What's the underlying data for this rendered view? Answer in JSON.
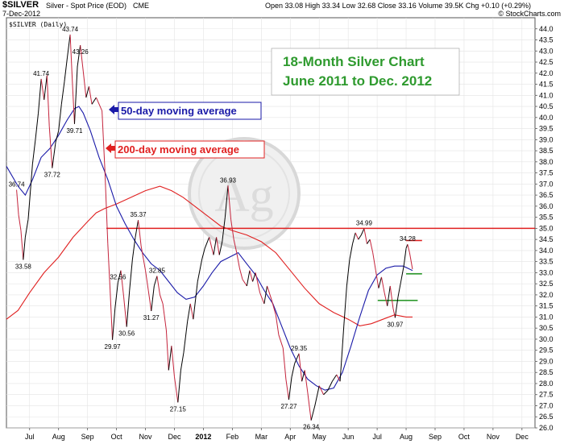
{
  "header": {
    "symbol": "$SILVER",
    "description": "Silver - Spot Price (EOD)",
    "exchange": "CME",
    "date": "7-Dec-2012",
    "open_label": "Open",
    "open": "33.08",
    "high_label": "High",
    "high": "33.34",
    "low_label": "Low",
    "low": "32.68",
    "close_label": "Close",
    "close": "33.16",
    "volume_label": "Volume",
    "volume": "39.5K",
    "chg_label": "Chg",
    "chg": "+0.10 (+0.29%)",
    "source": "© StockCharts.com",
    "legend_label": "$SILVER (Daily)"
  },
  "chart_data": {
    "type": "line",
    "title": "18-Month Silver Chart",
    "subtitle": "June 2011 to Dec. 2012",
    "ylim": [
      26,
      44.5
    ],
    "y_ticks": [
      26.0,
      26.5,
      27.0,
      27.5,
      28.0,
      28.5,
      29.0,
      29.5,
      30.0,
      30.5,
      31.0,
      31.5,
      32.0,
      32.5,
      33.0,
      33.5,
      34.0,
      34.5,
      35.0,
      35.5,
      36.0,
      36.5,
      37.0,
      37.5,
      38.0,
      38.5,
      39.0,
      39.5,
      40.0,
      40.5,
      41.0,
      41.5,
      42.0,
      42.5,
      43.0,
      43.5,
      44.0
    ],
    "x_ticks": [
      "Jul",
      "Aug",
      "Sep",
      "Oct",
      "Nov",
      "Dec",
      "2012",
      "Feb",
      "Mar",
      "Apr",
      "May",
      "Jun",
      "Jul",
      "Aug",
      "Sep",
      "Oct",
      "Nov",
      "Dec"
    ],
    "x_tick_months": [
      1,
      2,
      3,
      4,
      5,
      6,
      7,
      8,
      9,
      10,
      11,
      12,
      13,
      14,
      15,
      16,
      17,
      18
    ],
    "x_range": [
      0.2,
      18.45
    ],
    "colors": {
      "price": "#000000",
      "price_decline": "#c4243c",
      "ma50": "#1a1aa8",
      "ma200": "#e02020",
      "green": "#2e9a2e",
      "accent_text": "#2e9a2e"
    },
    "series": [
      {
        "name": "$SILVER (Daily)",
        "points": [
          [
            0.55,
            36.74
          ],
          [
            0.62,
            35.6
          ],
          [
            0.7,
            34.9
          ],
          [
            0.78,
            33.58
          ],
          [
            0.85,
            34.6
          ],
          [
            0.95,
            35.4
          ],
          [
            1.1,
            37.9
          ],
          [
            1.2,
            39.0
          ],
          [
            1.3,
            40.2
          ],
          [
            1.4,
            41.74
          ],
          [
            1.5,
            40.8
          ],
          [
            1.6,
            41.9
          ],
          [
            1.68,
            39.6
          ],
          [
            1.78,
            37.72
          ],
          [
            1.9,
            38.9
          ],
          [
            2.0,
            39.4
          ],
          [
            2.1,
            40.6
          ],
          [
            2.2,
            41.6
          ],
          [
            2.3,
            42.7
          ],
          [
            2.4,
            43.74
          ],
          [
            2.48,
            41.5
          ],
          [
            2.55,
            39.71
          ],
          [
            2.65,
            42.3
          ],
          [
            2.75,
            43.26
          ],
          [
            2.85,
            42.1
          ],
          [
            2.95,
            40.9
          ],
          [
            3.05,
            41.4
          ],
          [
            3.15,
            40.6
          ],
          [
            3.3,
            40.9
          ],
          [
            3.5,
            40.3
          ],
          [
            3.6,
            37.6
          ],
          [
            3.7,
            34.3
          ],
          [
            3.78,
            32.2
          ],
          [
            3.86,
            29.97
          ],
          [
            3.95,
            31.4
          ],
          [
            4.05,
            32.56
          ],
          [
            4.15,
            33.1
          ],
          [
            4.25,
            31.9
          ],
          [
            4.35,
            30.56
          ],
          [
            4.45,
            32.2
          ],
          [
            4.55,
            33.6
          ],
          [
            4.65,
            34.6
          ],
          [
            4.75,
            35.37
          ],
          [
            4.85,
            34.2
          ],
          [
            5.0,
            33.1
          ],
          [
            5.1,
            32.2
          ],
          [
            5.2,
            31.27
          ],
          [
            5.3,
            32.4
          ],
          [
            5.4,
            32.85
          ],
          [
            5.5,
            32.0
          ],
          [
            5.6,
            31.6
          ],
          [
            5.72,
            30.4
          ],
          [
            5.8,
            28.6
          ],
          [
            5.9,
            29.7
          ],
          [
            6.0,
            28.3
          ],
          [
            6.12,
            27.15
          ],
          [
            6.22,
            28.6
          ],
          [
            6.32,
            29.4
          ],
          [
            6.45,
            30.8
          ],
          [
            6.55,
            31.6
          ],
          [
            6.65,
            30.9
          ],
          [
            6.8,
            32.6
          ],
          [
            6.95,
            33.6
          ],
          [
            7.05,
            34.1
          ],
          [
            7.2,
            34.6
          ],
          [
            7.35,
            33.8
          ],
          [
            7.45,
            34.6
          ],
          [
            7.55,
            33.8
          ],
          [
            7.65,
            34.4
          ],
          [
            7.75,
            35.5
          ],
          [
            7.85,
            36.93
          ],
          [
            7.95,
            35.4
          ],
          [
            8.05,
            34.5
          ],
          [
            8.15,
            33.9
          ],
          [
            8.25,
            33.2
          ],
          [
            8.35,
            32.7
          ],
          [
            8.5,
            32.4
          ],
          [
            8.6,
            33.1
          ],
          [
            8.7,
            32.6
          ],
          [
            8.8,
            33.0
          ],
          [
            8.95,
            32.1
          ],
          [
            9.1,
            31.6
          ],
          [
            9.2,
            32.4
          ],
          [
            9.35,
            31.8
          ],
          [
            9.5,
            31.1
          ],
          [
            9.6,
            30.2
          ],
          [
            9.75,
            29.6
          ],
          [
            9.85,
            28.2
          ],
          [
            9.95,
            27.27
          ],
          [
            10.05,
            28.3
          ],
          [
            10.15,
            28.9
          ],
          [
            10.3,
            29.35
          ],
          [
            10.4,
            28.1
          ],
          [
            10.5,
            28.6
          ],
          [
            10.6,
            27.6
          ],
          [
            10.72,
            26.34
          ],
          [
            10.85,
            27.0
          ],
          [
            11.0,
            27.9
          ],
          [
            11.15,
            27.5
          ],
          [
            11.3,
            27.7
          ],
          [
            11.45,
            28.1
          ],
          [
            11.6,
            28.4
          ],
          [
            11.72,
            28.1
          ],
          [
            11.85,
            30.6
          ],
          [
            11.95,
            32.4
          ],
          [
            12.05,
            33.6
          ],
          [
            12.15,
            34.3
          ],
          [
            12.25,
            34.8
          ],
          [
            12.35,
            34.5
          ],
          [
            12.45,
            34.7
          ],
          [
            12.55,
            34.99
          ],
          [
            12.65,
            34.3
          ],
          [
            12.75,
            34.5
          ],
          [
            12.85,
            33.9
          ],
          [
            12.95,
            33.1
          ],
          [
            13.05,
            32.3
          ],
          [
            13.15,
            32.8
          ],
          [
            13.25,
            32.1
          ],
          [
            13.35,
            31.5
          ],
          [
            13.45,
            32.4
          ],
          [
            13.55,
            31.4
          ],
          [
            13.62,
            30.97
          ],
          [
            13.72,
            31.9
          ],
          [
            13.82,
            32.6
          ],
          [
            13.92,
            33.3
          ],
          [
            14.0,
            34.1
          ],
          [
            14.05,
            34.28
          ],
          [
            14.12,
            33.9
          ],
          [
            14.22,
            33.16
          ]
        ]
      },
      {
        "name": "50-day moving average",
        "points": [
          [
            0.2,
            37.8
          ],
          [
            0.6,
            36.9
          ],
          [
            0.85,
            36.5
          ],
          [
            1.1,
            37.2
          ],
          [
            1.4,
            38.2
          ],
          [
            1.7,
            38.6
          ],
          [
            2.0,
            39.2
          ],
          [
            2.3,
            39.9
          ],
          [
            2.55,
            40.4
          ],
          [
            2.7,
            40.5
          ],
          [
            2.85,
            40.2
          ],
          [
            3.1,
            39.4
          ],
          [
            3.4,
            38.2
          ],
          [
            3.7,
            37.2
          ],
          [
            4.0,
            36.0
          ],
          [
            4.3,
            35.2
          ],
          [
            4.6,
            34.5
          ],
          [
            4.9,
            33.9
          ],
          [
            5.2,
            33.4
          ],
          [
            5.5,
            33.1
          ],
          [
            5.8,
            32.6
          ],
          [
            6.1,
            32.1
          ],
          [
            6.4,
            31.8
          ],
          [
            6.7,
            31.9
          ],
          [
            7.0,
            32.4
          ],
          [
            7.3,
            33.0
          ],
          [
            7.6,
            33.5
          ],
          [
            7.9,
            33.7
          ],
          [
            8.2,
            33.9
          ],
          [
            8.5,
            33.4
          ],
          [
            8.8,
            32.9
          ],
          [
            9.1,
            32.2
          ],
          [
            9.4,
            31.6
          ],
          [
            9.7,
            30.6
          ],
          [
            10.0,
            29.6
          ],
          [
            10.3,
            28.8
          ],
          [
            10.6,
            28.2
          ],
          [
            10.9,
            27.9
          ],
          [
            11.2,
            27.7
          ],
          [
            11.5,
            27.8
          ],
          [
            11.8,
            28.5
          ],
          [
            12.1,
            29.7
          ],
          [
            12.4,
            31.0
          ],
          [
            12.7,
            32.2
          ],
          [
            13.0,
            32.9
          ],
          [
            13.3,
            33.2
          ],
          [
            13.6,
            33.3
          ],
          [
            13.9,
            33.3
          ],
          [
            14.22,
            33.1
          ]
        ]
      },
      {
        "name": "200-day moving average",
        "points": [
          [
            0.2,
            30.9
          ],
          [
            0.6,
            31.3
          ],
          [
            1.0,
            32.1
          ],
          [
            1.5,
            33.0
          ],
          [
            2.0,
            33.7
          ],
          [
            2.5,
            34.6
          ],
          [
            3.0,
            35.3
          ],
          [
            3.3,
            35.7
          ],
          [
            3.6,
            35.9
          ],
          [
            4.0,
            36.1
          ],
          [
            4.5,
            36.4
          ],
          [
            5.0,
            36.7
          ],
          [
            5.5,
            36.9
          ],
          [
            5.9,
            36.7
          ],
          [
            6.3,
            36.4
          ],
          [
            6.8,
            35.9
          ],
          [
            7.2,
            35.5
          ],
          [
            7.6,
            35.1
          ],
          [
            8.0,
            34.9
          ],
          [
            8.5,
            34.7
          ],
          [
            9.0,
            34.4
          ],
          [
            9.5,
            33.9
          ],
          [
            10.0,
            33.1
          ],
          [
            10.5,
            32.3
          ],
          [
            11.0,
            31.6
          ],
          [
            11.5,
            31.2
          ],
          [
            12.0,
            30.9
          ],
          [
            12.4,
            30.6
          ],
          [
            12.8,
            30.7
          ],
          [
            13.2,
            30.9
          ],
          [
            13.6,
            31.1
          ],
          [
            14.0,
            31.0
          ],
          [
            14.22,
            31.0
          ]
        ]
      }
    ],
    "labels": [
      {
        "text": "36.74",
        "x": 0.55,
        "y": 36.74,
        "pos": "above"
      },
      {
        "text": "33.58",
        "x": 0.78,
        "y": 33.58,
        "pos": "below"
      },
      {
        "text": "41.74",
        "x": 1.4,
        "y": 41.74,
        "pos": "above"
      },
      {
        "text": "37.72",
        "x": 1.78,
        "y": 37.72,
        "pos": "below"
      },
      {
        "text": "43.74",
        "x": 2.4,
        "y": 43.74,
        "pos": "above"
      },
      {
        "text": "39.71",
        "x": 2.55,
        "y": 39.71,
        "pos": "below"
      },
      {
        "text": "43.26",
        "x": 2.75,
        "y": 43.26,
        "pos": "below"
      },
      {
        "text": "29.97",
        "x": 3.86,
        "y": 29.97,
        "pos": "below"
      },
      {
        "text": "32.56",
        "x": 4.05,
        "y": 32.56,
        "pos": "above"
      },
      {
        "text": "30.56",
        "x": 4.35,
        "y": 30.56,
        "pos": "below"
      },
      {
        "text": "35.37",
        "x": 4.75,
        "y": 35.37,
        "pos": "above"
      },
      {
        "text": "31.27",
        "x": 5.2,
        "y": 31.27,
        "pos": "below"
      },
      {
        "text": "32.85",
        "x": 5.4,
        "y": 32.85,
        "pos": "above"
      },
      {
        "text": "27.15",
        "x": 6.12,
        "y": 27.15,
        "pos": "below"
      },
      {
        "text": "36.93",
        "x": 7.85,
        "y": 36.93,
        "pos": "above"
      },
      {
        "text": "27.27",
        "x": 9.95,
        "y": 27.27,
        "pos": "below"
      },
      {
        "text": "29.35",
        "x": 10.3,
        "y": 29.35,
        "pos": "above"
      },
      {
        "text": "26.34",
        "x": 10.72,
        "y": 26.34,
        "pos": "below"
      },
      {
        "text": "34.99",
        "x": 12.55,
        "y": 34.99,
        "pos": "above"
      },
      {
        "text": "30.97",
        "x": 13.62,
        "y": 30.97,
        "pos": "below"
      },
      {
        "text": "34.28",
        "x": 14.05,
        "y": 34.28,
        "pos": "above"
      }
    ],
    "reference_lines": [
      {
        "y": 35.0,
        "x0": 3.65,
        "x1": 18.45,
        "color": "red"
      },
      {
        "y": 34.45,
        "x0": 14.0,
        "x1": 14.55,
        "color": "red"
      },
      {
        "y": 32.95,
        "x0": 14.0,
        "x1": 14.55,
        "color": "green"
      },
      {
        "y": 31.75,
        "x0": 13.02,
        "x1": 14.4,
        "color": "green"
      }
    ],
    "annotations": [
      {
        "text": "50-day moving average",
        "color": "#1a1aa8",
        "arrow": "left"
      },
      {
        "text": "200-day moving average",
        "color": "#e02020",
        "arrow": "left"
      }
    ]
  }
}
